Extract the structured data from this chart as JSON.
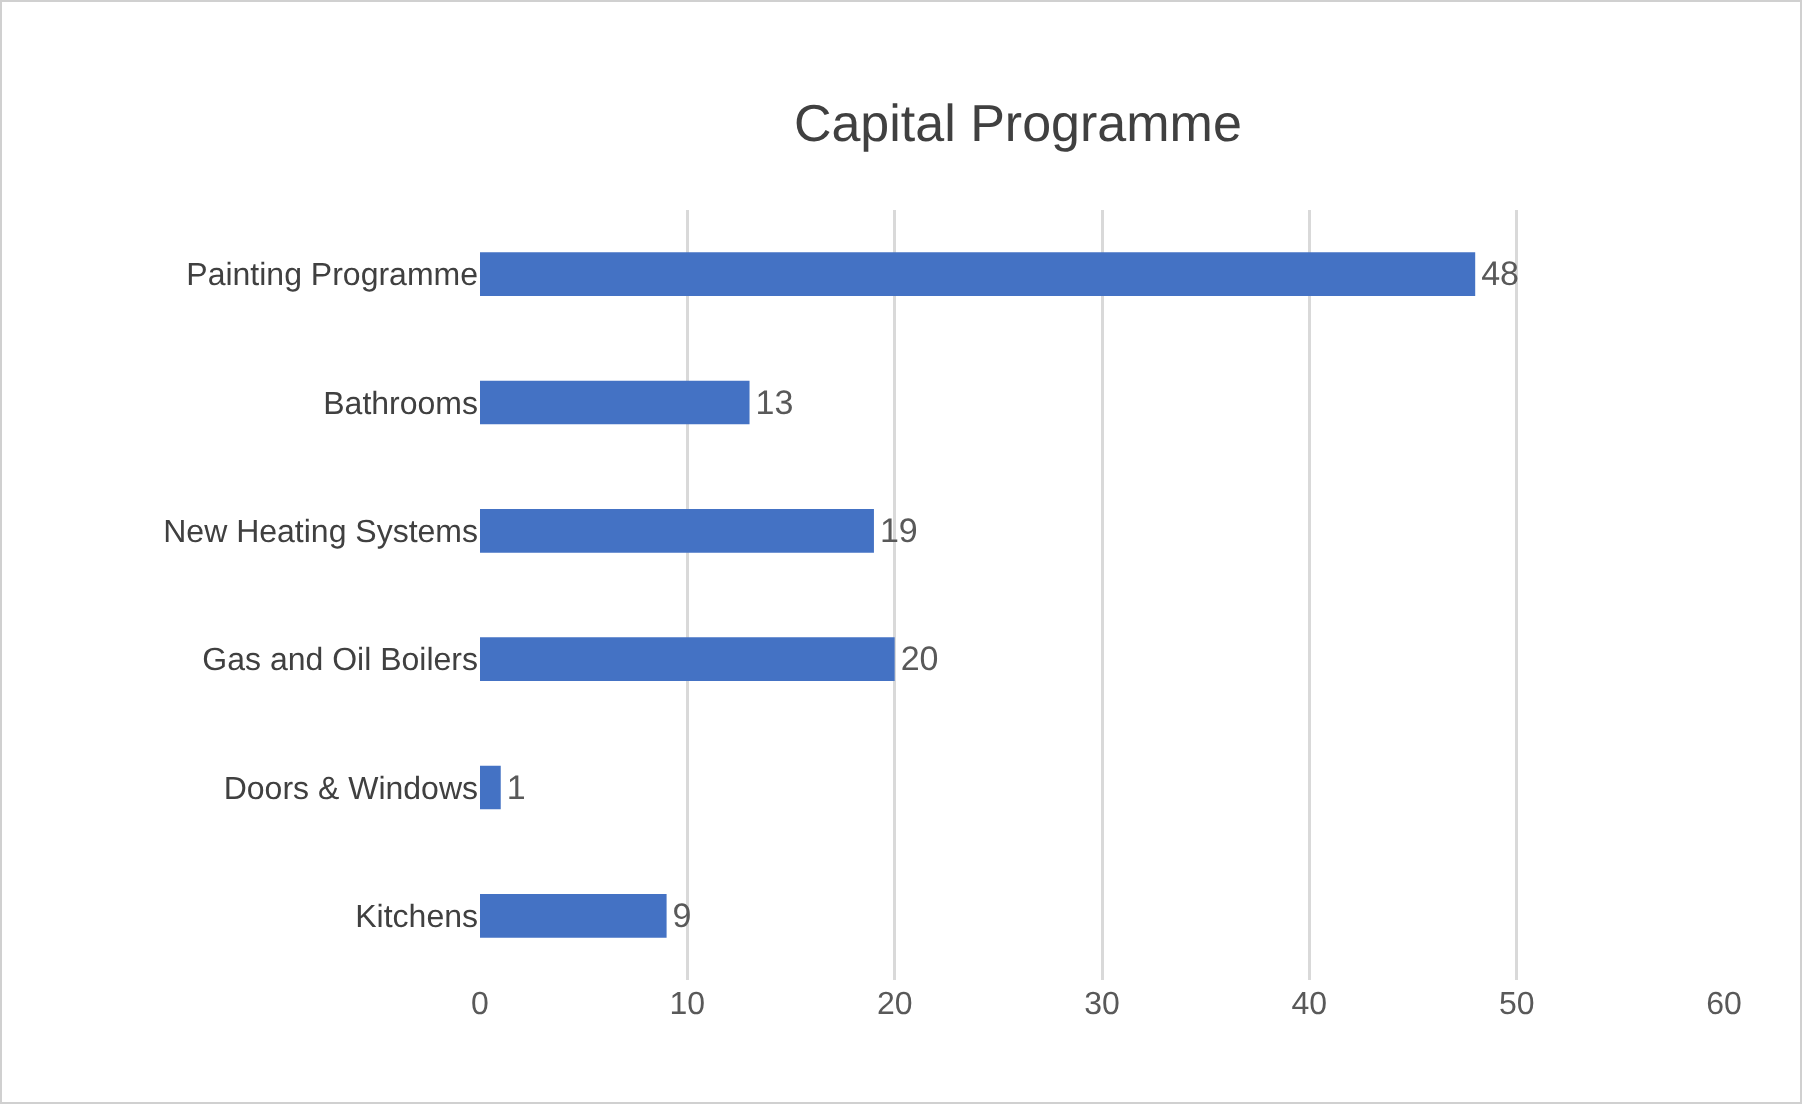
{
  "chart_data": {
    "type": "bar",
    "title": "Capital Programme",
    "orientation": "horizontal",
    "categories": [
      "Painting Programme",
      "Bathrooms",
      "New Heating Systems",
      "Gas and Oil Boilers",
      "Doors & Windows",
      "Kitchens"
    ],
    "values": [
      48,
      13,
      19,
      20,
      1,
      9
    ],
    "color": "#4472c4",
    "xlim": [
      0,
      60
    ],
    "xticks": [
      0,
      10,
      20,
      30,
      40,
      50,
      60
    ],
    "grid": "x",
    "data_labels": true,
    "legend": false
  }
}
